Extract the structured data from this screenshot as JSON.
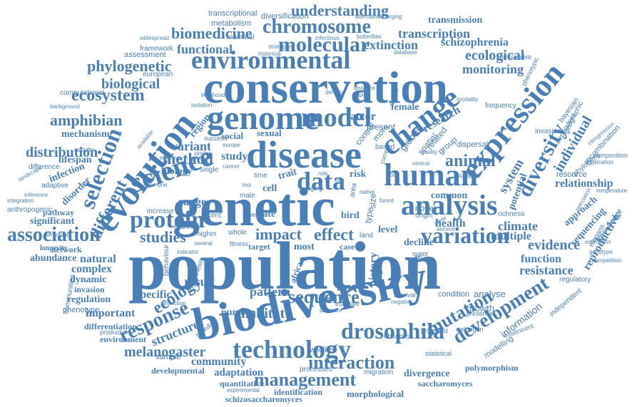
{
  "color": "#4a7fb5",
  "background": "#ffffff",
  "words": [
    {
      "text": "population"
    },
    {
      "text": "genetic"
    },
    {
      "text": "conservation"
    },
    {
      "text": "biodiversity"
    },
    {
      "text": "disease"
    },
    {
      "text": "genome"
    },
    {
      "text": "evolution"
    },
    {
      "text": "science"
    },
    {
      "text": "expression"
    },
    {
      "text": "human"
    },
    {
      "text": "change"
    },
    {
      "text": "environmental"
    },
    {
      "text": "analysis"
    },
    {
      "text": "model"
    },
    {
      "text": "protein"
    },
    {
      "text": "drosophila"
    },
    {
      "text": "technology"
    },
    {
      "text": "selection"
    },
    {
      "text": "variation"
    },
    {
      "text": "data"
    },
    {
      "text": "development"
    },
    {
      "text": "diversity"
    },
    {
      "text": "molecular"
    },
    {
      "text": "chromosome"
    },
    {
      "text": "management"
    },
    {
      "text": "interaction"
    },
    {
      "text": "association"
    },
    {
      "text": "sequence"
    },
    {
      "text": "response"
    },
    {
      "text": "ecology"
    },
    {
      "text": "mutation"
    },
    {
      "text": "phylogenetic"
    },
    {
      "text": "ecosystem"
    },
    {
      "text": "amphibian"
    },
    {
      "text": "different"
    },
    {
      "text": "method"
    },
    {
      "text": "animal"
    },
    {
      "text": "individual"
    },
    {
      "text": "effect"
    },
    {
      "text": "impact"
    },
    {
      "text": "studies"
    },
    {
      "text": "habitat"
    },
    {
      "text": "melanogaster"
    },
    {
      "text": "structure"
    },
    {
      "text": "climate"
    },
    {
      "text": "evidence"
    },
    {
      "text": "resistance"
    },
    {
      "text": "function"
    },
    {
      "text": "understanding"
    },
    {
      "text": "biomedicine"
    },
    {
      "text": "functional"
    },
    {
      "text": "ecological"
    },
    {
      "text": "monitoring"
    },
    {
      "text": "biological"
    },
    {
      "text": "distribution"
    },
    {
      "text": "variant"
    },
    {
      "text": "system"
    },
    {
      "text": "transcription"
    },
    {
      "text": "schizophrenia"
    },
    {
      "text": "extinction"
    },
    {
      "text": "transmission"
    },
    {
      "text": "relationship"
    },
    {
      "text": "community"
    },
    {
      "text": "adaptation"
    },
    {
      "text": "divergence"
    },
    {
      "text": "polymorphism"
    },
    {
      "text": "saccharomyces"
    },
    {
      "text": "identification"
    },
    {
      "text": "morphological"
    },
    {
      "text": "schizosaccharomyces"
    },
    {
      "text": "quantitative"
    },
    {
      "text": "developmental"
    },
    {
      "text": "environment"
    },
    {
      "text": "differentiation"
    },
    {
      "text": "important"
    },
    {
      "text": "specific"
    },
    {
      "text": "result"
    },
    {
      "text": "pattern"
    },
    {
      "text": "study"
    },
    {
      "text": "biology"
    },
    {
      "text": "range"
    },
    {
      "text": "history"
    },
    {
      "text": "mouse"
    },
    {
      "text": "africa"
    },
    {
      "text": "health"
    },
    {
      "text": "multiple"
    },
    {
      "text": "common"
    },
    {
      "text": "potential"
    },
    {
      "text": "reproductive"
    },
    {
      "text": "sequencing"
    },
    {
      "text": "approach"
    },
    {
      "text": "knowledge"
    },
    {
      "text": "regulation"
    },
    {
      "text": "invasion"
    },
    {
      "text": "complex"
    },
    {
      "text": "dynamic"
    },
    {
      "text": "natural"
    },
    {
      "text": "abundance"
    },
    {
      "text": "network"
    },
    {
      "text": "longevity"
    },
    {
      "text": "significant"
    },
    {
      "text": "pathway"
    },
    {
      "text": "lifespan"
    },
    {
      "text": "infection"
    },
    {
      "text": "disorder"
    },
    {
      "text": "mechanism"
    },
    {
      "text": "factor"
    },
    {
      "text": "female"
    },
    {
      "text": "research"
    },
    {
      "text": "region"
    },
    {
      "text": "social"
    },
    {
      "text": "sexual"
    },
    {
      "text": "number"
    },
    {
      "text": "rate"
    },
    {
      "text": "cell"
    },
    {
      "text": "trait"
    },
    {
      "text": "risk"
    },
    {
      "text": "bird"
    },
    {
      "text": "level"
    },
    {
      "text": "case"
    },
    {
      "text": "most"
    },
    {
      "text": "target"
    },
    {
      "text": "decline"
    },
    {
      "text": "finding"
    },
    {
      "text": "metabolism"
    },
    {
      "text": "diversification"
    },
    {
      "text": "transcriptional"
    },
    {
      "text": "mammal"
    },
    {
      "text": "assessment"
    },
    {
      "text": "framework"
    },
    {
      "text": "comparative"
    },
    {
      "text": "computational"
    },
    {
      "text": "european"
    },
    {
      "text": "frequency"
    },
    {
      "text": "invasive"
    },
    {
      "text": "global"
    },
    {
      "text": "spatial"
    },
    {
      "text": "related"
    },
    {
      "text": "group"
    },
    {
      "text": "dispersal"
    },
    {
      "text": "recombination"
    },
    {
      "text": "phylogeny"
    },
    {
      "text": "composition"
    },
    {
      "text": "resource"
    },
    {
      "text": "temperature"
    },
    {
      "text": "speciation"
    },
    {
      "text": "elegans"
    },
    {
      "text": "regulatory"
    },
    {
      "text": "competition"
    },
    {
      "text": "genotype"
    },
    {
      "text": "estimation"
    },
    {
      "text": "information"
    },
    {
      "text": "independent"
    },
    {
      "text": "modelling"
    },
    {
      "text": "coalescent"
    },
    {
      "text": "growth"
    },
    {
      "text": "analyse"
    },
    {
      "text": "condition"
    },
    {
      "text": "presence"
    },
    {
      "text": "pathogen"
    },
    {
      "text": "protected"
    },
    {
      "text": "observed"
    },
    {
      "text": "migration"
    },
    {
      "text": "processes"
    },
    {
      "text": "wildlife"
    },
    {
      "text": "experimental"
    },
    {
      "text": "statistical"
    },
    {
      "text": "sample"
    },
    {
      "text": "production"
    },
    {
      "text": "phenotype"
    },
    {
      "text": "communities"
    },
    {
      "text": "terrestrial"
    },
    {
      "text": "anthropogenic"
    },
    {
      "text": "integration"
    },
    {
      "text": "adaptive"
    },
    {
      "text": "inference"
    },
    {
      "text": "landscape"
    },
    {
      "text": "difference"
    },
    {
      "text": "activity"
    },
    {
      "text": "available"
    },
    {
      "text": "background"
    },
    {
      "text": "marine"
    },
    {
      "text": "increase"
    },
    {
      "text": "recent"
    },
    {
      "text": "future"
    },
    {
      "text": "higher"
    },
    {
      "text": "several"
    },
    {
      "text": "whole"
    },
    {
      "text": "scale"
    },
    {
      "text": "fitness"
    },
    {
      "text": "indicator"
    },
    {
      "text": "behaviour"
    },
    {
      "text": "hypothesis"
    },
    {
      "text": "breeding"
    },
    {
      "text": "restriction"
    },
    {
      "text": "estimate"
    },
    {
      "text": "pressure"
    },
    {
      "text": "survival"
    },
    {
      "text": "negative"
    },
    {
      "text": "novel"
    },
    {
      "text": "origin"
    },
    {
      "text": "richness"
    },
    {
      "text": "ancient"
    },
    {
      "text": "major"
    },
    {
      "text": "native"
    },
    {
      "text": "land"
    },
    {
      "text": "area"
    },
    {
      "text": "life"
    },
    {
      "text": "aging"
    },
    {
      "text": "role"
    },
    {
      "text": "male"
    },
    {
      "text": "time"
    },
    {
      "text": "loci"
    },
    {
      "text": "single"
    },
    {
      "text": "cancer"
    },
    {
      "text": "immune"
    },
    {
      "text": "effective"
    },
    {
      "text": "similar"
    },
    {
      "text": "europe"
    },
    {
      "text": "success"
    },
    {
      "text": "present"
    },
    {
      "text": "body"
    },
    {
      "text": "forest"
    },
    {
      "text": "support"
    },
    {
      "text": "bayesian"
    },
    {
      "text": "geographic"
    },
    {
      "text": "phenotypic"
    },
    {
      "text": "dependent"
    },
    {
      "text": "introgression"
    },
    {
      "text": "implication"
    },
    {
      "text": "butterflies"
    },
    {
      "text": "infectious"
    },
    {
      "text": "strategies"
    },
    {
      "text": "database"
    },
    {
      "text": "alternative"
    },
    {
      "text": "emerging"
    },
    {
      "text": "widespread"
    },
    {
      "text": "historical"
    },
    {
      "text": "density"
    },
    {
      "text": "distance"
    },
    {
      "text": "tropical"
    },
    {
      "text": "mortality"
    },
    {
      "text": "provide"
    },
    {
      "text": "isolation"
    },
    {
      "text": "likelihood"
    },
    {
      "text": "control"
    },
    {
      "text": "based"
    },
    {
      "text": "type"
    },
    {
      "text": "size"
    },
    {
      "text": "more"
    },
    {
      "text": "current"
    },
    {
      "text": "quality"
    },
    {
      "text": "central"
    },
    {
      "text": "allele"
    }
  ]
}
